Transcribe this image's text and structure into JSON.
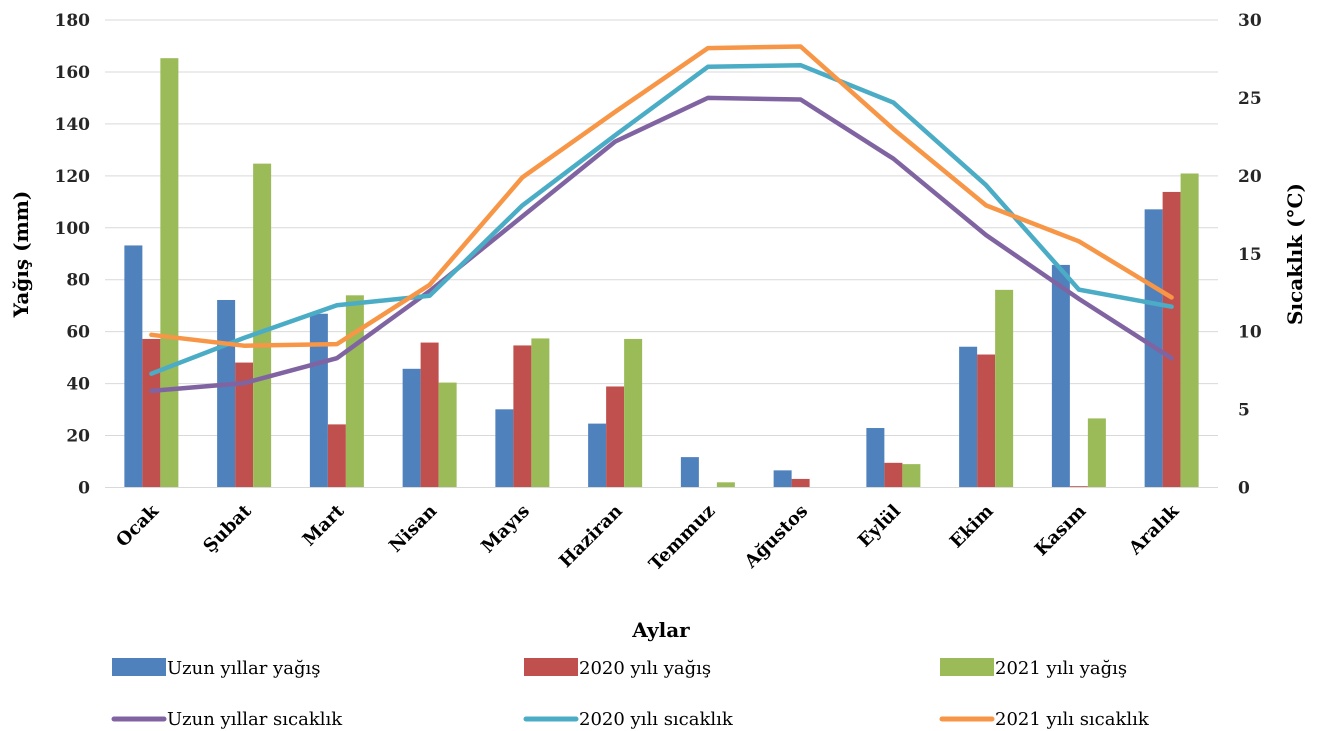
{
  "chart_data": {
    "type": "bar",
    "combo": "bar+line, dual y-axis",
    "categories": [
      "Ocak",
      "Şubat",
      "Mart",
      "Nisan",
      "Mayıs",
      "Haziran",
      "Temmuz",
      "Ağustos",
      "Eylül",
      "Ekim",
      "Kasım",
      "Aralık"
    ],
    "xlabel": "Aylar",
    "ylabel": "Yağış (mm)",
    "ylabel_right": "Sıcaklık (°C)",
    "ylim": [
      0,
      180
    ],
    "ylim_right": [
      0,
      30
    ],
    "yticks": [
      "0",
      "20",
      "40",
      "60",
      "80",
      "100",
      "120",
      "140",
      "160",
      "180"
    ],
    "yticks_right": [
      "0",
      "5",
      "10",
      "15",
      "20",
      "25",
      "30"
    ],
    "grid": true,
    "legend_position": "bottom",
    "bar_series": [
      {
        "name": "Uzun yıllar yağış",
        "color": "#4f81bd",
        "values": [
          93.2,
          72.2,
          66.9,
          45.7,
          30.1,
          24.6,
          11.7,
          6.6,
          22.9,
          54.2,
          85.7,
          107.1
        ]
      },
      {
        "name": "2020 yılı yağış",
        "color": "#c0504d",
        "values": [
          57.2,
          48.1,
          24.3,
          55.8,
          54.7,
          38.9,
          0.0,
          3.3,
          9.5,
          51.2,
          0.5,
          113.8
        ]
      },
      {
        "name": "2021 yılı yağış",
        "color": "#9bbb59",
        "values": [
          165.3,
          124.7,
          74.0,
          40.4,
          57.4,
          57.2,
          2.0,
          0.0,
          9.0,
          76.1,
          26.6,
          120.9
        ]
      }
    ],
    "line_series": [
      {
        "name": "Uzun yıllar sıcaklık",
        "color": "#8064a2",
        "values": [
          6.2,
          6.7,
          8.3,
          12.6,
          17.4,
          22.2,
          25.0,
          24.9,
          21.1,
          16.2,
          12.1,
          8.3
        ]
      },
      {
        "name": "2020 yılı sıcaklık",
        "color": "#4bacc6",
        "values": [
          7.3,
          9.6,
          11.7,
          12.3,
          18.1,
          22.6,
          27.0,
          27.1,
          24.7,
          19.4,
          12.7,
          11.6
        ]
      },
      {
        "name": "2021 yılı sıcaklık",
        "color": "#f79646",
        "values": [
          9.8,
          9.1,
          9.2,
          13.0,
          19.9,
          24.1,
          28.2,
          28.3,
          23.0,
          18.1,
          15.8,
          12.2
        ]
      }
    ]
  }
}
